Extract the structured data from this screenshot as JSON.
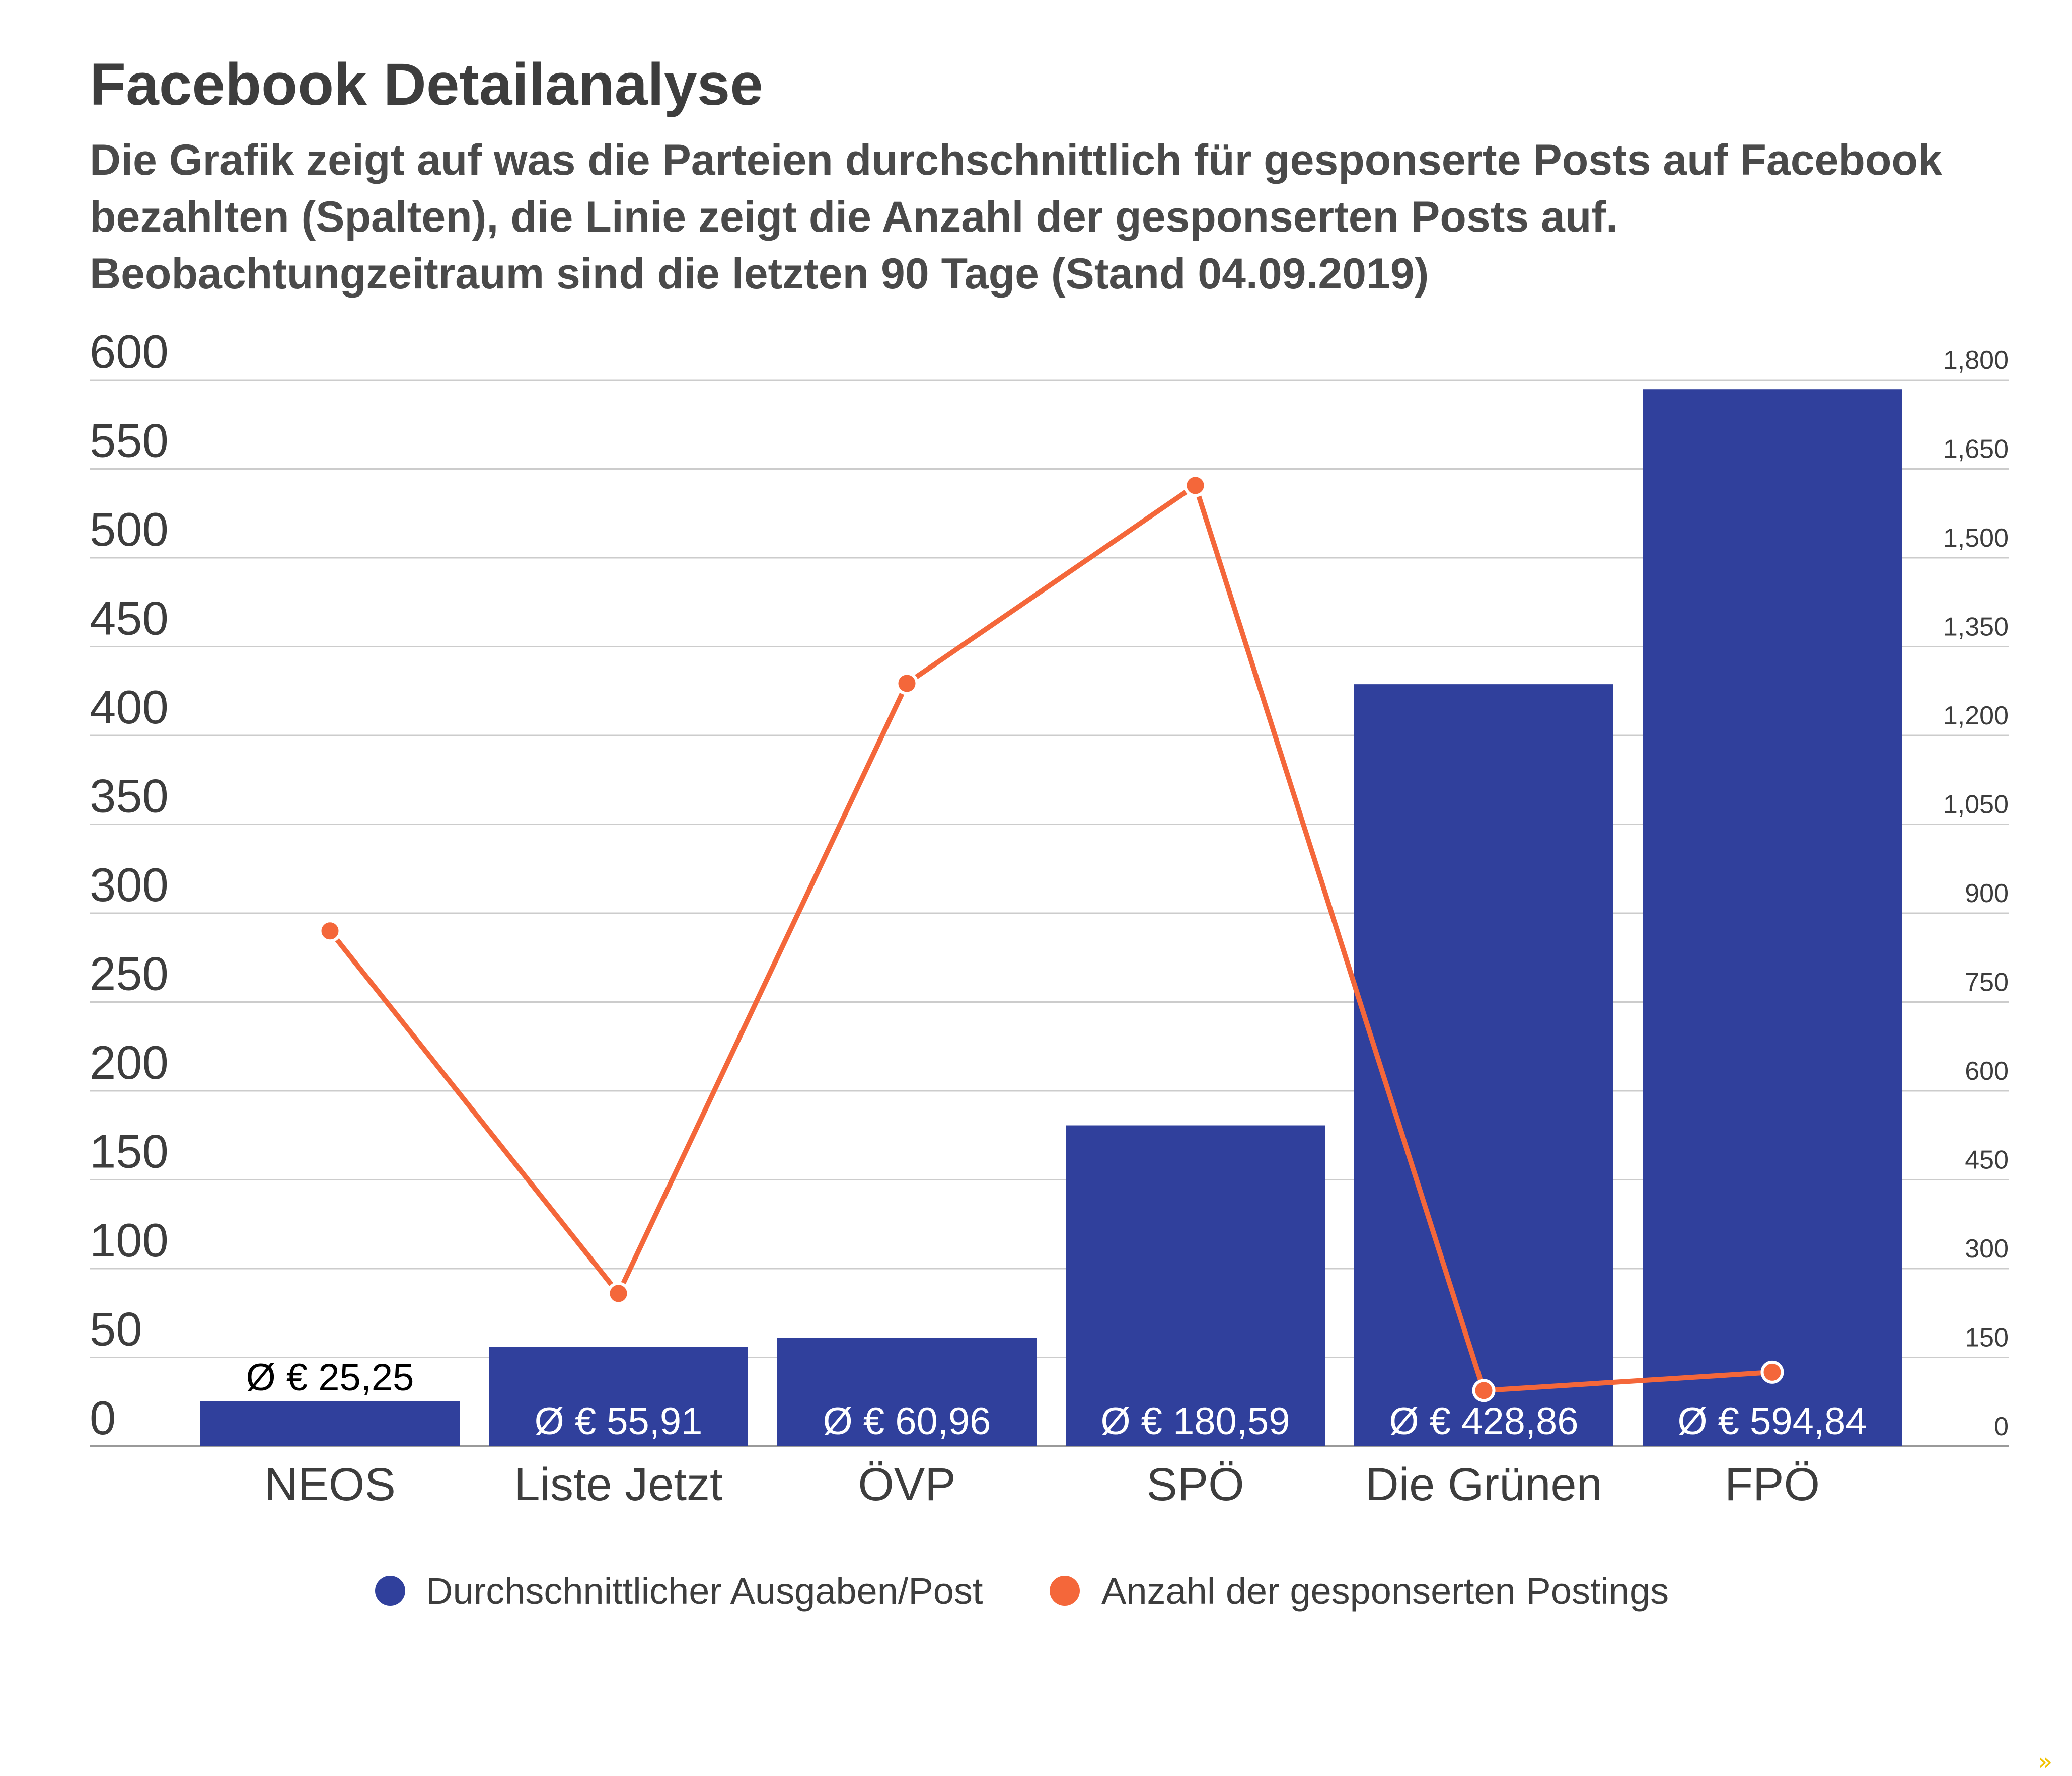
{
  "title": "Facebook Detailanalyse",
  "subtitle_lines": [
    "Die Grafik zeigt auf was die Parteien durchschnittlich für gesponserte Posts auf Facebook",
    "bezahlten (Spalten), die Linie zeigt die Anzahl der gesponserten Posts auf.",
    "Beobachtungzeitraum sind die letzten 90 Tage (Stand 04.09.2019)"
  ],
  "colors": {
    "bar": "#30409c",
    "line": "#f4673a",
    "text": "#3d3d3d"
  },
  "corner_mark": "»",
  "chart_data": {
    "type": "bar",
    "categories": [
      "NEOS",
      "Liste Jetzt",
      "ÖVP",
      "SPÖ",
      "Die Grünen",
      "FPÖ"
    ],
    "series": [
      {
        "name": "Durchschnittlicher Ausgaben/Post",
        "type": "bar",
        "axis": "left",
        "values": [
          25.25,
          55.91,
          60.96,
          180.59,
          428.86,
          594.84
        ],
        "data_labels": [
          "Ø € 25,25",
          "Ø € 55,91",
          "Ø € 60,96",
          "Ø € 180,59",
          "Ø € 428,86",
          "Ø € 594,84"
        ]
      },
      {
        "name": "Anzahl der gesponserten Postings",
        "type": "line",
        "axis": "right",
        "values": [
          870,
          258,
          1288,
          1622,
          94,
          125
        ]
      }
    ],
    "y_left": {
      "min": 0,
      "max": 600,
      "step": 50,
      "ticks": [
        "0",
        "50",
        "100",
        "150",
        "200",
        "250",
        "300",
        "350",
        "400",
        "450",
        "500",
        "550",
        "600"
      ]
    },
    "y_right": {
      "min": 0,
      "max": 1800,
      "step": 150,
      "ticks": [
        "0",
        "150",
        "300",
        "450",
        "600",
        "750",
        "900",
        "1,050",
        "1,200",
        "1,350",
        "1,500",
        "1,650",
        "1,800"
      ]
    },
    "grid": true,
    "legend_position": "bottom"
  }
}
